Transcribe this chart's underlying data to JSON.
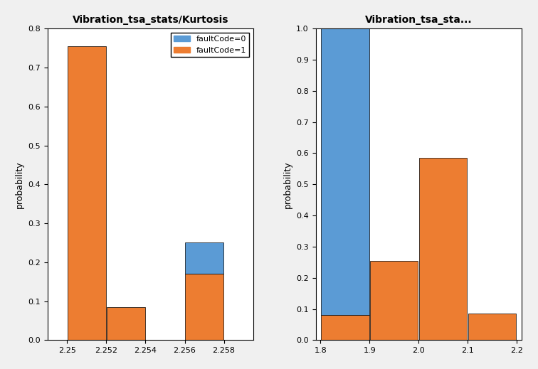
{
  "kurtosis_title": "Vibration_tsa_stats/Kurtosis",
  "crest_title": "Vibration_tsa_sta...",
  "ylabel": "probability",
  "xlabel_kurtosis": "",
  "xlabel_crest": "",
  "color_blue": "#5B9BD5",
  "color_orange": "#ED7D31",
  "legend_label_0": "faultCode=0",
  "legend_label_1": "faultCode=1",
  "kurtosis_bins": [
    2.25,
    2.252,
    2.254,
    2.256,
    2.258
  ],
  "kurtosis_blue": [
    0.0,
    0.0,
    0.0,
    0.08
  ],
  "kurtosis_orange": [
    0.755,
    0.085,
    0.0,
    0.17
  ],
  "kurtosis_xlim": [
    2.249,
    2.2595
  ],
  "kurtosis_ylim": [
    0,
    0.8
  ],
  "kurtosis_xticks": [
    2.25,
    2.252,
    2.254,
    2.256,
    2.258
  ],
  "kurtosis_yticks": [
    0,
    0.1,
    0.2,
    0.3,
    0.4,
    0.5,
    0.6,
    0.7,
    0.8
  ],
  "crest_bins": [
    1.8,
    1.9,
    2.0,
    2.1,
    2.2
  ],
  "crest_blue": [
    0.92,
    0.0,
    0.0,
    0.0
  ],
  "crest_orange": [
    0.08,
    0.255,
    0.585,
    0.085
  ],
  "crest_xlim": [
    1.79,
    2.21
  ],
  "crest_ylim": [
    0,
    1.0
  ],
  "crest_xticks": [
    1.8,
    1.9,
    2.0,
    2.1,
    2.2
  ],
  "crest_yticks": [
    0,
    0.1,
    0.2,
    0.3,
    0.4,
    0.5,
    0.6,
    0.7,
    0.8,
    0.9,
    1.0
  ],
  "bg_color": "#f0f0f0",
  "plot_bg": "#ffffff",
  "title_fontsize": 10,
  "tick_fontsize": 8,
  "label_fontsize": 9
}
